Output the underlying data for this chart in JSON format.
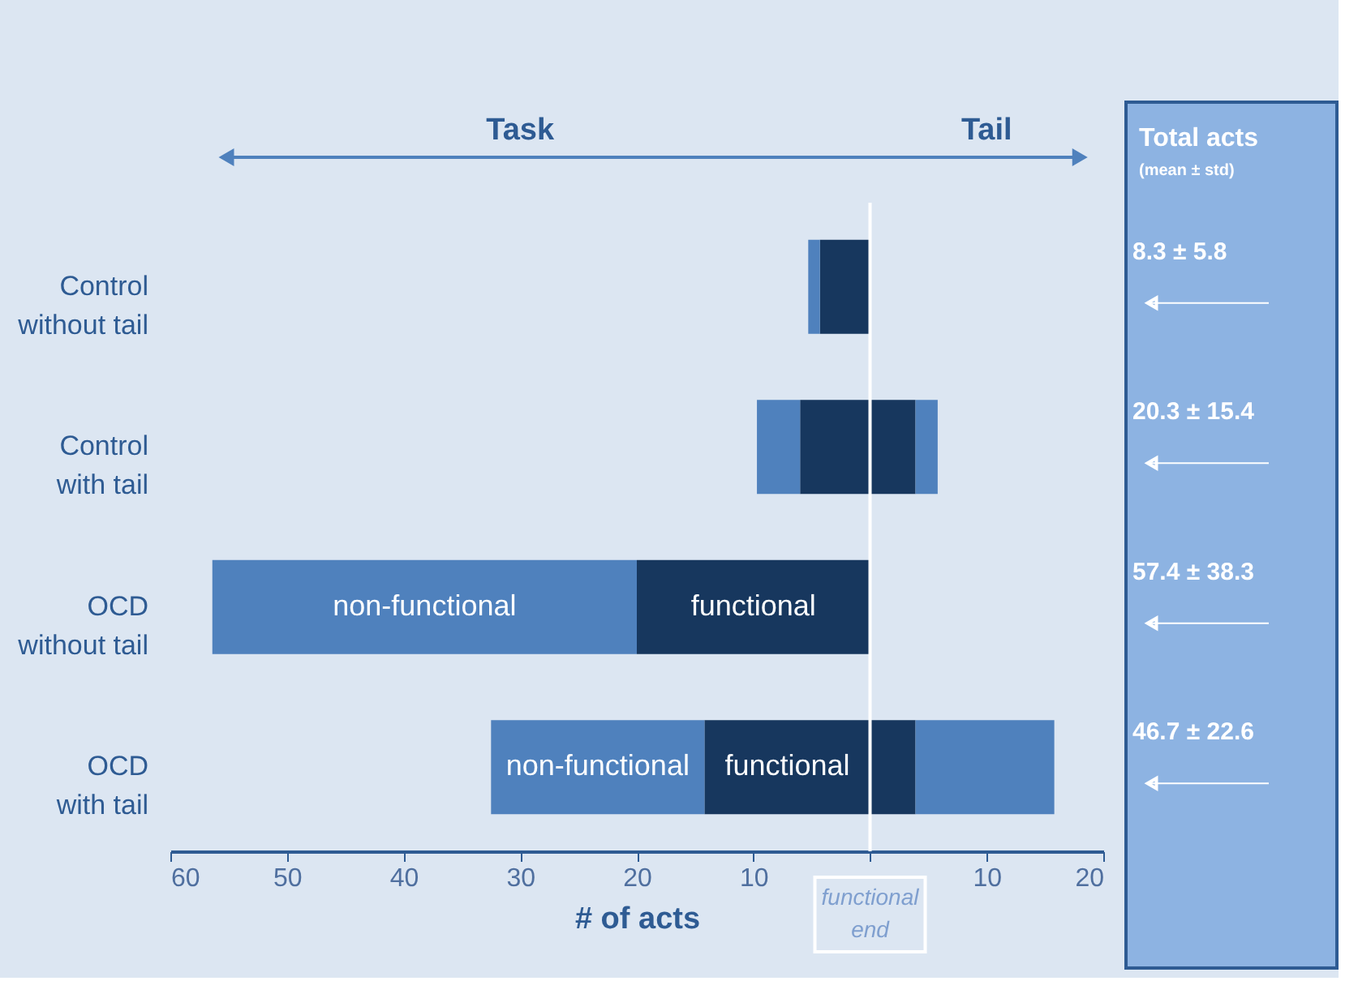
{
  "chart_data": {
    "type": "bar",
    "orientation": "horizontal",
    "stacked": true,
    "categories": [
      "Control\nwithout tail",
      "Control\nwith tail",
      "OCD\nwithout tail",
      "OCD\nwith tail"
    ],
    "series": [
      {
        "color": "#17375e",
        "values": [
          -4.3,
          -6.0,
          -20.0,
          -14.2
        ]
      },
      {
        "color": "#4f81bd",
        "values": [
          -1.0,
          -3.7,
          -36.4,
          -18.3
        ]
      },
      {
        "color": "#17375e",
        "values": [
          null,
          3.9,
          null,
          3.9
        ]
      },
      {
        "color": "#4f81bd",
        "values": [
          null,
          1.9,
          null,
          11.9
        ]
      }
    ],
    "xlabel": "# of acts",
    "xlim": [
      -60,
      20
    ],
    "xticks": [
      {
        "value": -60,
        "label": "60"
      },
      {
        "value": -50,
        "label": "50"
      },
      {
        "value": -40,
        "label": "40"
      },
      {
        "value": -30,
        "label": "30"
      },
      {
        "value": -20,
        "label": "20"
      },
      {
        "value": -10,
        "label": "10"
      },
      {
        "value": 0,
        "label": null
      },
      10,
      20
    ],
    "ref_lines": [
      {
        "axis": "x",
        "value": 0,
        "label": "functional end",
        "color": "#ffffff"
      }
    ],
    "annotations": [
      "Task",
      "Tail",
      "Total acts",
      "(mean ± std)",
      "8.3 ±  5.8",
      "20.3 ±  15.4",
      "57.4 ± 38.3",
      "46.7 ± 22.6",
      "non-functional",
      "functional",
      "non-functional",
      "functional"
    ],
    "grid": false,
    "legend": false
  }
}
